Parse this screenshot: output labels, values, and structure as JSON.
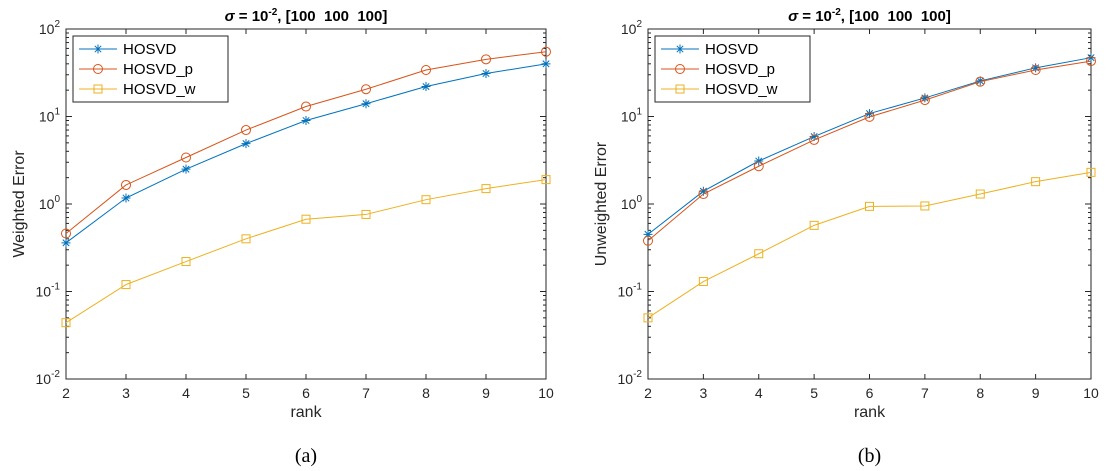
{
  "chart_data": [
    {
      "type": "line",
      "panel": "a",
      "caption": "(a)",
      "title_sigma": "σ",
      "title_eq": " = 10",
      "title_exp": "-2",
      "title_rest": ", [100  100  100]",
      "xlabel": "rank",
      "ylabel": "Weighted Error",
      "yscale": "log",
      "xlim": [
        2,
        10
      ],
      "ylim": [
        0.01,
        100
      ],
      "x": [
        2,
        3,
        4,
        5,
        6,
        7,
        8,
        9,
        10
      ],
      "x_ticks": [
        "2",
        "3",
        "4",
        "5",
        "6",
        "7",
        "8",
        "9",
        "10"
      ],
      "y_ticks": [
        {
          "value": 0.01,
          "base": "10",
          "exp": "-2"
        },
        {
          "value": 0.1,
          "base": "10",
          "exp": "-1"
        },
        {
          "value": 1,
          "base": "10",
          "exp": "0"
        },
        {
          "value": 10,
          "base": "10",
          "exp": "1"
        },
        {
          "value": 100,
          "base": "10",
          "exp": "2"
        }
      ],
      "legend_position": "top-left",
      "series": [
        {
          "name": "HOSVD",
          "marker": "asterisk",
          "color": "#0072BD",
          "values": [
            0.36,
            1.17,
            2.5,
            4.9,
            9.0,
            14.0,
            22.0,
            31.0,
            40.0
          ]
        },
        {
          "name": "HOSVD_p",
          "marker": "circle",
          "color": "#D95319",
          "values": [
            0.46,
            1.65,
            3.4,
            7.0,
            13.0,
            20.5,
            34.0,
            45.0,
            55.0
          ]
        },
        {
          "name": "HOSVD_w",
          "marker": "square",
          "color": "#EDB120",
          "values": [
            0.044,
            0.12,
            0.22,
            0.4,
            0.67,
            0.76,
            1.12,
            1.5,
            1.9
          ]
        }
      ]
    },
    {
      "type": "line",
      "panel": "b",
      "caption": "(b)",
      "title_sigma": "σ",
      "title_eq": " = 10",
      "title_exp": "-2",
      "title_rest": ", [100  100  100]",
      "xlabel": "rank",
      "ylabel": "Unweighted Error",
      "yscale": "log",
      "xlim": [
        2,
        10
      ],
      "ylim": [
        0.01,
        100
      ],
      "x": [
        2,
        3,
        4,
        5,
        6,
        7,
        8,
        9,
        10
      ],
      "x_ticks": [
        "2",
        "3",
        "4",
        "5",
        "6",
        "7",
        "8",
        "9",
        "10"
      ],
      "y_ticks": [
        {
          "value": 0.01,
          "base": "10",
          "exp": "-2"
        },
        {
          "value": 0.1,
          "base": "10",
          "exp": "-1"
        },
        {
          "value": 1,
          "base": "10",
          "exp": "0"
        },
        {
          "value": 10,
          "base": "10",
          "exp": "1"
        },
        {
          "value": 100,
          "base": "10",
          "exp": "2"
        }
      ],
      "legend_position": "top-left",
      "series": [
        {
          "name": "HOSVD",
          "marker": "asterisk",
          "color": "#0072BD",
          "values": [
            0.45,
            1.4,
            3.1,
            5.9,
            10.8,
            16.3,
            25.5,
            36.0,
            47.0
          ]
        },
        {
          "name": "HOSVD_p",
          "marker": "circle",
          "color": "#D95319",
          "values": [
            0.38,
            1.3,
            2.7,
            5.4,
            9.9,
            15.4,
            25.0,
            34.0,
            43.0
          ]
        },
        {
          "name": "HOSVD_w",
          "marker": "square",
          "color": "#EDB120",
          "values": [
            0.05,
            0.13,
            0.27,
            0.57,
            0.94,
            0.95,
            1.3,
            1.8,
            2.3
          ]
        }
      ]
    }
  ]
}
